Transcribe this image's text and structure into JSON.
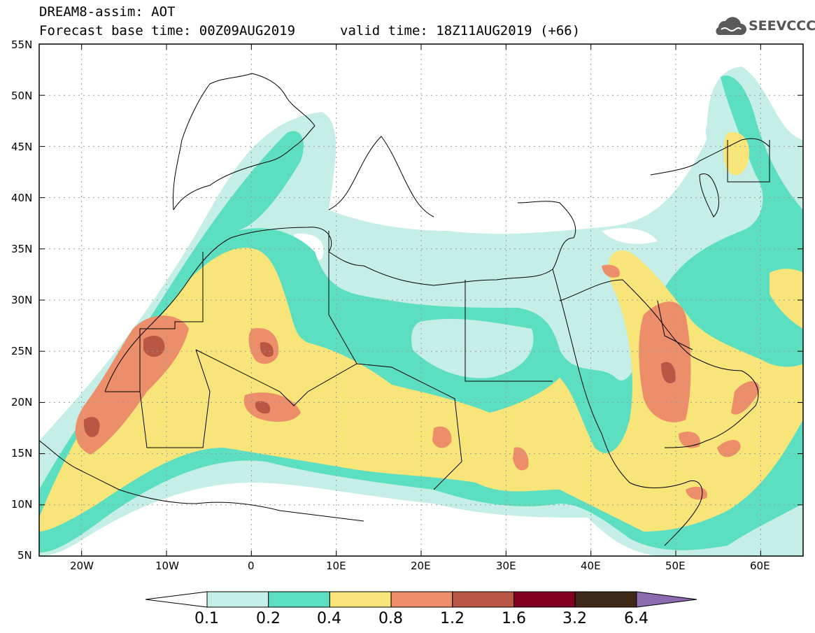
{
  "header": {
    "model_line": "DREAM8-assim: AOT",
    "base_time_line": "Forecast base time: 00Z09AUG2019",
    "valid_time_line": "valid time: 18Z11AUG2019 (+66)"
  },
  "logo": {
    "text": "SEEVCCC",
    "icon": "cloud-logo-icon"
  },
  "map": {
    "lon_range": [
      -25,
      65
    ],
    "lat_range": [
      5,
      55
    ],
    "lat_labels": [
      "55N",
      "50N",
      "45N",
      "40N",
      "35N",
      "30N",
      "25N",
      "20N",
      "15N",
      "10N",
      "5N"
    ],
    "lon_labels": [
      "20W",
      "10W",
      "0",
      "10E",
      "20E",
      "30E",
      "40E",
      "50E",
      "60E"
    ],
    "grid": true,
    "colors": {
      "land_outline": "#000000",
      "grid": "#9a9a9a"
    }
  },
  "colorbar": {
    "labels": [
      "0.1",
      "0.2",
      "0.4",
      "0.8",
      "1.2",
      "1.6",
      "3.2",
      "6.4"
    ],
    "colors": [
      "#ffffff",
      "#c4eee6",
      "#5cdfc0",
      "#f7e57a",
      "#ec8e6a",
      "#b95644",
      "#800020",
      "#3e2818",
      "#8c6bb1"
    ]
  }
}
